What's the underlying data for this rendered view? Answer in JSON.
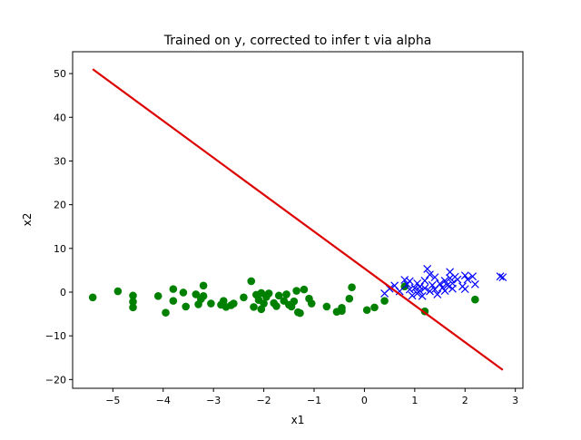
{
  "chart_data": {
    "type": "scatter",
    "title": "Trained on y, corrected to infer t via alpha",
    "xlabel": "x1",
    "ylabel": "x2",
    "xlim": [
      -5.8,
      3.15
    ],
    "ylim": [
      -22,
      55
    ],
    "x_ticks": [
      -5,
      -4,
      -3,
      -2,
      -1,
      0,
      1,
      2,
      3
    ],
    "y_ticks": [
      -20,
      -10,
      0,
      10,
      20,
      30,
      40,
      50
    ],
    "grid": false,
    "legend": "none",
    "series": [
      {
        "marker": "circle",
        "color": "#008000",
        "points": [
          [
            -5.4,
            -1.2
          ],
          [
            -4.9,
            0.2
          ],
          [
            -4.6,
            -0.8
          ],
          [
            -4.6,
            -2.2
          ],
          [
            -4.6,
            -3.5
          ],
          [
            -4.1,
            -0.9
          ],
          [
            -3.95,
            -4.7
          ],
          [
            -3.8,
            0.7
          ],
          [
            -3.8,
            -2.0
          ],
          [
            -3.6,
            -0.1
          ],
          [
            -3.55,
            -3.3
          ],
          [
            -3.35,
            -0.5
          ],
          [
            -3.3,
            -2.8
          ],
          [
            -3.25,
            -1.6
          ],
          [
            -3.2,
            1.5
          ],
          [
            -3.2,
            -0.9
          ],
          [
            -3.05,
            -2.6
          ],
          [
            -2.85,
            -2.9
          ],
          [
            -2.8,
            -2.0
          ],
          [
            -2.75,
            -3.4
          ],
          [
            -2.65,
            -3.0
          ],
          [
            -2.6,
            -2.6
          ],
          [
            -2.4,
            -1.2
          ],
          [
            -2.25,
            2.5
          ],
          [
            -2.2,
            -3.4
          ],
          [
            -2.15,
            -0.6
          ],
          [
            -2.1,
            -1.8
          ],
          [
            -2.05,
            -0.2
          ],
          [
            -2.05,
            -3.9
          ],
          [
            -2.0,
            -2.6
          ],
          [
            -1.95,
            -1.1
          ],
          [
            -1.9,
            -0.3
          ],
          [
            -1.8,
            -2.5
          ],
          [
            -1.75,
            -3.2
          ],
          [
            -1.7,
            -0.8
          ],
          [
            -1.6,
            -2.0
          ],
          [
            -1.55,
            -0.5
          ],
          [
            -1.5,
            -2.9
          ],
          [
            -1.45,
            -3.3
          ],
          [
            -1.4,
            -2.1
          ],
          [
            -1.35,
            0.3
          ],
          [
            -1.32,
            -4.6
          ],
          [
            -1.28,
            -4.8
          ],
          [
            -1.2,
            0.6
          ],
          [
            -1.1,
            -1.5
          ],
          [
            -1.05,
            -2.6
          ],
          [
            -0.75,
            -3.3
          ],
          [
            -0.55,
            -4.5
          ],
          [
            -0.45,
            -3.6
          ],
          [
            -0.45,
            -4.3
          ],
          [
            -0.3,
            -1.5
          ],
          [
            -0.25,
            1.1
          ],
          [
            0.05,
            -4.1
          ],
          [
            0.2,
            -3.5
          ],
          [
            0.4,
            -2.0
          ],
          [
            0.8,
            1.3
          ],
          [
            1.2,
            -4.4
          ],
          [
            2.2,
            -1.7
          ]
        ]
      },
      {
        "marker": "x",
        "color": "#0000ff",
        "points": [
          [
            0.4,
            -0.3
          ],
          [
            0.5,
            0.8
          ],
          [
            0.6,
            1.5
          ],
          [
            0.7,
            0.2
          ],
          [
            0.8,
            2.8
          ],
          [
            0.85,
            1.8
          ],
          [
            0.9,
            0.6
          ],
          [
            0.9,
            2.5
          ],
          [
            0.95,
            -0.8
          ],
          [
            1.0,
            0.9
          ],
          [
            1.05,
            -0.3
          ],
          [
            1.05,
            2.0
          ],
          [
            1.1,
            0.3
          ],
          [
            1.1,
            1.2
          ],
          [
            1.15,
            -0.9
          ],
          [
            1.2,
            2.6
          ],
          [
            1.2,
            0.9
          ],
          [
            1.25,
            5.3
          ],
          [
            1.3,
            4.0
          ],
          [
            1.3,
            0.2
          ],
          [
            1.35,
            1.6
          ],
          [
            1.4,
            0.6
          ],
          [
            1.4,
            3.4
          ],
          [
            1.45,
            -0.5
          ],
          [
            1.5,
            1.9
          ],
          [
            1.55,
            1.0
          ],
          [
            1.6,
            0.3
          ],
          [
            1.6,
            2.6
          ],
          [
            1.65,
            1.6
          ],
          [
            1.7,
            3.2
          ],
          [
            1.7,
            4.6
          ],
          [
            1.75,
            0.8
          ],
          [
            1.75,
            2.0
          ],
          [
            1.8,
            3.5
          ],
          [
            1.85,
            2.9
          ],
          [
            1.95,
            1.3
          ],
          [
            2.0,
            0.7
          ],
          [
            2.0,
            3.8
          ],
          [
            2.05,
            2.9
          ],
          [
            2.15,
            3.6
          ],
          [
            2.2,
            1.8
          ],
          [
            2.7,
            3.6
          ],
          [
            2.75,
            3.4
          ]
        ]
      },
      {
        "marker": "line",
        "color": "#dd0000",
        "points": [
          [
            -5.4,
            51.0
          ],
          [
            2.75,
            -17.8
          ]
        ]
      }
    ]
  }
}
